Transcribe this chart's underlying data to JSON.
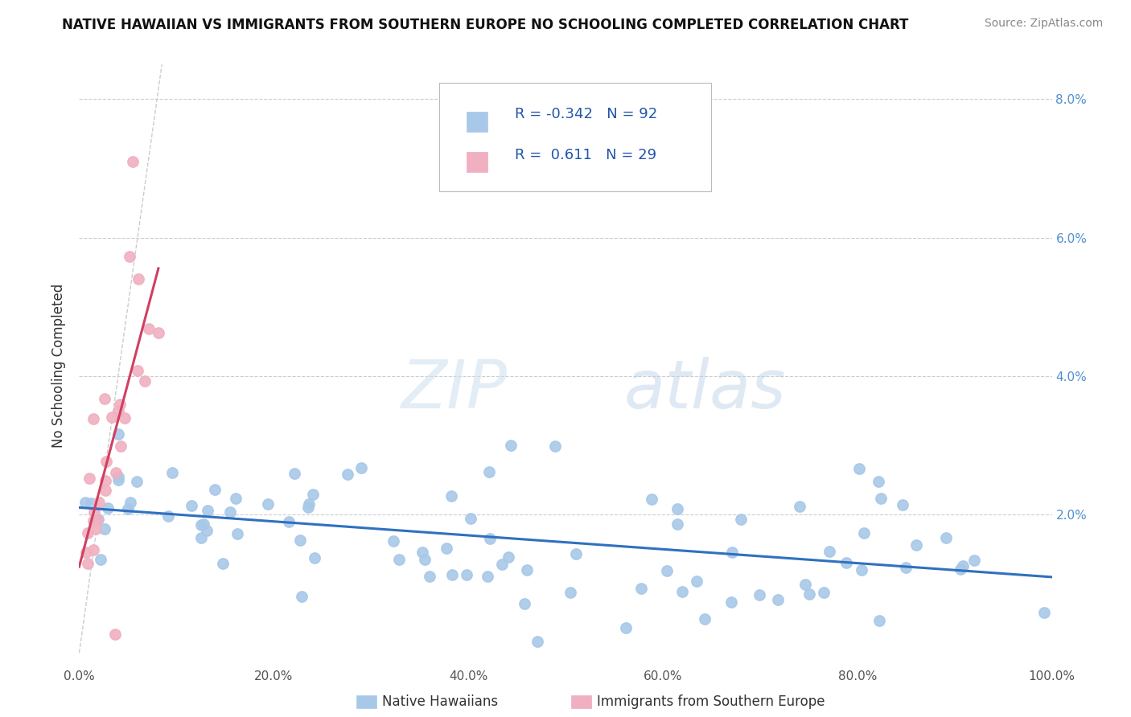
{
  "title": "NATIVE HAWAIIAN VS IMMIGRANTS FROM SOUTHERN EUROPE NO SCHOOLING COMPLETED CORRELATION CHART",
  "source": "Source: ZipAtlas.com",
  "ylabel": "No Schooling Completed",
  "xlim": [
    0.0,
    1.0
  ],
  "ylim": [
    -0.002,
    0.085
  ],
  "xtick_labels": [
    "0.0%",
    "20.0%",
    "40.0%",
    "60.0%",
    "80.0%",
    "100.0%"
  ],
  "xtick_values": [
    0.0,
    0.2,
    0.4,
    0.6,
    0.8,
    1.0
  ],
  "ytick_labels": [
    "",
    "2.0%",
    "4.0%",
    "6.0%",
    "8.0%"
  ],
  "ytick_values": [
    0.0,
    0.02,
    0.04,
    0.06,
    0.08
  ],
  "blue_scatter_color": "#a8c8e8",
  "pink_scatter_color": "#f0b0c0",
  "blue_line_color": "#3070c0",
  "pink_line_color": "#d04060",
  "diagonal_color": "#cccccc",
  "right_tick_color": "#5090d0",
  "R_blue": -0.342,
  "N_blue": 92,
  "R_pink": 0.611,
  "N_pink": 29,
  "legend_label_blue": "Native Hawaiians",
  "legend_label_pink": "Immigrants from Southern Europe",
  "watermark_zip": "ZIP",
  "watermark_atlas": "atlas",
  "title_fontsize": 12,
  "source_fontsize": 10,
  "legend_fontsize": 13,
  "tick_fontsize": 11
}
